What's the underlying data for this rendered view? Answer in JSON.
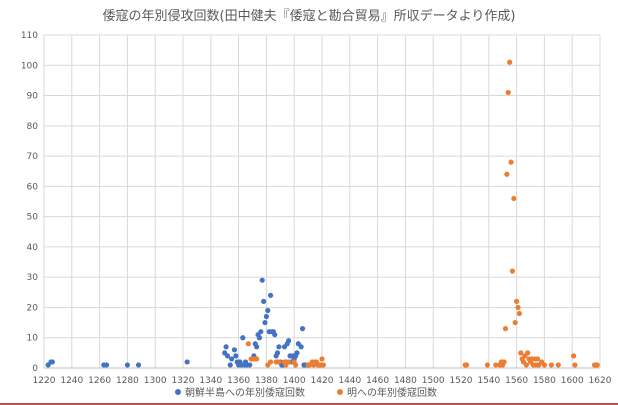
{
  "chart_data": {
    "type": "scatter",
    "title": "倭寇の年別侵攻回数(田中健夫『倭寇と勘合貿易』所収データより作成)",
    "xlim": [
      1220,
      1620
    ],
    "ylim": [
      0,
      110
    ],
    "x_ticks": [
      1220,
      1240,
      1260,
      1280,
      1300,
      1320,
      1340,
      1360,
      1380,
      1400,
      1420,
      1440,
      1460,
      1480,
      1500,
      1520,
      1540,
      1560,
      1580,
      1600,
      1620
    ],
    "y_ticks": [
      0,
      10,
      20,
      30,
      40,
      50,
      60,
      70,
      80,
      90,
      100,
      110
    ],
    "grid": "both",
    "legend_position": "bottom",
    "series": [
      {
        "name": "朝鮮半島への年別倭寇回数",
        "color": "#4472c4",
        "points": [
          [
            1223,
            1
          ],
          [
            1225,
            2
          ],
          [
            1226,
            2
          ],
          [
            1263,
            1
          ],
          [
            1265,
            1
          ],
          [
            1280,
            1
          ],
          [
            1288,
            1
          ],
          [
            1323,
            2
          ],
          [
            1350,
            5
          ],
          [
            1351,
            7
          ],
          [
            1352,
            4
          ],
          [
            1354,
            1
          ],
          [
            1355,
            3
          ],
          [
            1357,
            6
          ],
          [
            1358,
            4
          ],
          [
            1359,
            2
          ],
          [
            1360,
            1
          ],
          [
            1361,
            2
          ],
          [
            1362,
            1
          ],
          [
            1363,
            10
          ],
          [
            1364,
            1
          ],
          [
            1365,
            2
          ],
          [
            1366,
            1
          ],
          [
            1368,
            1
          ],
          [
            1370,
            3
          ],
          [
            1371,
            4
          ],
          [
            1372,
            8
          ],
          [
            1373,
            7
          ],
          [
            1374,
            11
          ],
          [
            1375,
            10
          ],
          [
            1376,
            12
          ],
          [
            1377,
            29
          ],
          [
            1378,
            22
          ],
          [
            1379,
            15
          ],
          [
            1380,
            17
          ],
          [
            1381,
            19
          ],
          [
            1382,
            12
          ],
          [
            1383,
            24
          ],
          [
            1384,
            12
          ],
          [
            1385,
            12
          ],
          [
            1386,
            11
          ],
          [
            1387,
            4
          ],
          [
            1388,
            5
          ],
          [
            1389,
            7
          ],
          [
            1390,
            2
          ],
          [
            1391,
            1
          ],
          [
            1392,
            1
          ],
          [
            1393,
            7
          ],
          [
            1394,
            2
          ],
          [
            1395,
            8
          ],
          [
            1396,
            9
          ],
          [
            1397,
            4
          ],
          [
            1398,
            2
          ],
          [
            1399,
            4
          ],
          [
            1400,
            3
          ],
          [
            1401,
            4
          ],
          [
            1402,
            5
          ],
          [
            1403,
            8
          ],
          [
            1405,
            7
          ],
          [
            1406,
            13
          ],
          [
            1407,
            1
          ],
          [
            1408,
            1
          ],
          [
            1410,
            1
          ]
        ]
      },
      {
        "name": "明への年別倭寇回数",
        "color": "#ed7d31",
        "points": [
          [
            1367,
            8
          ],
          [
            1369,
            3
          ],
          [
            1370,
            3
          ],
          [
            1371,
            3
          ],
          [
            1372,
            3
          ],
          [
            1373,
            3
          ],
          [
            1381,
            1
          ],
          [
            1383,
            2
          ],
          [
            1387,
            2
          ],
          [
            1388,
            2
          ],
          [
            1389,
            2
          ],
          [
            1393,
            2
          ],
          [
            1394,
            1
          ],
          [
            1396,
            2
          ],
          [
            1400,
            2
          ],
          [
            1401,
            1
          ],
          [
            1410,
            1
          ],
          [
            1411,
            1
          ],
          [
            1413,
            2
          ],
          [
            1414,
            1
          ],
          [
            1415,
            2
          ],
          [
            1416,
            2
          ],
          [
            1417,
            1
          ],
          [
            1418,
            1
          ],
          [
            1419,
            1
          ],
          [
            1420,
            3
          ],
          [
            1421,
            1
          ],
          [
            1523,
            1
          ],
          [
            1524,
            1
          ],
          [
            1539,
            1
          ],
          [
            1545,
            1
          ],
          [
            1548,
            1
          ],
          [
            1549,
            2
          ],
          [
            1550,
            1
          ],
          [
            1551,
            2
          ],
          [
            1552,
            13
          ],
          [
            1553,
            64
          ],
          [
            1554,
            91
          ],
          [
            1555,
            101
          ],
          [
            1556,
            68
          ],
          [
            1557,
            32
          ],
          [
            1558,
            56
          ],
          [
            1559,
            15
          ],
          [
            1560,
            22
          ],
          [
            1561,
            20
          ],
          [
            1562,
            18
          ],
          [
            1563,
            5
          ],
          [
            1564,
            3
          ],
          [
            1565,
            2
          ],
          [
            1566,
            4
          ],
          [
            1567,
            1
          ],
          [
            1568,
            5
          ],
          [
            1569,
            3
          ],
          [
            1570,
            2
          ],
          [
            1571,
            3
          ],
          [
            1572,
            1
          ],
          [
            1573,
            3
          ],
          [
            1574,
            1
          ],
          [
            1575,
            3
          ],
          [
            1576,
            1
          ],
          [
            1578,
            2
          ],
          [
            1580,
            1
          ],
          [
            1585,
            1
          ],
          [
            1590,
            1
          ],
          [
            1601,
            4
          ],
          [
            1602,
            1
          ],
          [
            1616,
            1
          ],
          [
            1617,
            1
          ],
          [
            1618,
            1
          ]
        ]
      }
    ]
  }
}
